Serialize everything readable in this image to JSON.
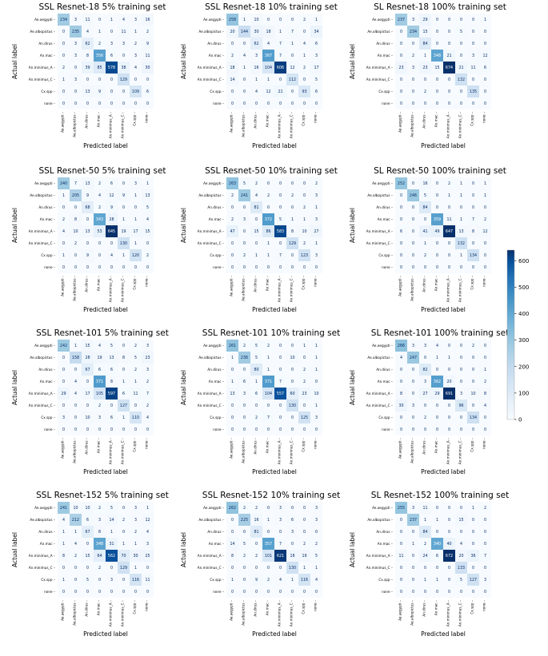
{
  "chart_data": {
    "type": "heatmap",
    "categories": [
      "Ae.aegypti",
      "Ae.albopictus",
      "An.dirus",
      "An.mac",
      "An.minimus_A",
      "An.minimus_C",
      "Cx.spp",
      "none"
    ],
    "xlabel": "Predicted label",
    "ylabel": "Actual label",
    "colorbar": {
      "min": 0,
      "max": 640,
      "ticks": [
        0,
        100,
        200,
        300,
        400,
        500,
        600
      ],
      "colors": [
        "#f7fbff",
        "#08306b"
      ]
    },
    "matrices": [
      {
        "title": "SSL Resnet-18 5% training set",
        "values": [
          [
            234,
            3,
            11,
            0,
            1,
            4,
            3,
            16
          ],
          [
            0,
            235,
            4,
            1,
            0,
            11,
            1,
            2
          ],
          [
            0,
            3,
            62,
            2,
            3,
            3,
            2,
            9
          ],
          [
            0,
            3,
            8,
            356,
            6,
            0,
            3,
            11
          ],
          [
            2,
            0,
            39,
            85,
            578,
            38,
            4,
            30
          ],
          [
            1,
            3,
            0,
            0,
            0,
            129,
            0,
            0
          ],
          [
            0,
            0,
            13,
            9,
            0,
            0,
            109,
            6
          ],
          [
            0,
            0,
            0,
            0,
            0,
            0,
            0,
            0
          ]
        ]
      },
      {
        "title": "SSL Resnet-18 10% training set",
        "values": [
          [
            258,
            1,
            10,
            0,
            0,
            0,
            2,
            1
          ],
          [
            20,
            144,
            30,
            18,
            1,
            7,
            0,
            34
          ],
          [
            0,
            0,
            62,
            4,
            7,
            1,
            4,
            6
          ],
          [
            2,
            4,
            3,
            367,
            7,
            0,
            1,
            3
          ],
          [
            18,
            1,
            16,
            104,
            606,
            12,
            2,
            17
          ],
          [
            14,
            0,
            1,
            1,
            0,
            112,
            0,
            5
          ],
          [
            0,
            0,
            4,
            12,
            21,
            0,
            93,
            6
          ],
          [
            0,
            0,
            0,
            0,
            0,
            0,
            0,
            0
          ]
        ]
      },
      {
        "title": "SL Resnet-18 100% training set",
        "values": [
          [
            237,
            3,
            29,
            0,
            0,
            0,
            0,
            1
          ],
          [
            0,
            234,
            15,
            0,
            0,
            5,
            0,
            0
          ],
          [
            0,
            0,
            84,
            0,
            0,
            0,
            0,
            0
          ],
          [
            0,
            2,
            1,
            348,
            21,
            0,
            3,
            12
          ],
          [
            23,
            3,
            23,
            15,
            674,
            21,
            11,
            6
          ],
          [
            0,
            0,
            0,
            0,
            0,
            132,
            0,
            0
          ],
          [
            0,
            0,
            2,
            0,
            0,
            0,
            135,
            0
          ],
          [
            0,
            0,
            0,
            0,
            0,
            0,
            0,
            0
          ]
        ]
      },
      {
        "title": "SSL Resnet-50 5% training set",
        "values": [
          [
            240,
            7,
            13,
            2,
            6,
            0,
            3,
            1
          ],
          [
            1,
            205,
            9,
            4,
            12,
            9,
            1,
            13
          ],
          [
            0,
            0,
            68,
            2,
            9,
            0,
            0,
            5
          ],
          [
            2,
            8,
            0,
            343,
            28,
            1,
            1,
            4
          ],
          [
            4,
            10,
            13,
            53,
            645,
            19,
            17,
            15
          ],
          [
            0,
            2,
            0,
            0,
            0,
            130,
            1,
            0
          ],
          [
            1,
            0,
            9,
            0,
            4,
            1,
            120,
            2
          ],
          [
            0,
            0,
            0,
            0,
            0,
            0,
            0,
            0
          ]
        ]
      },
      {
        "title": "SSL Resnet-50 10% training set",
        "values": [
          [
            263,
            5,
            2,
            0,
            0,
            0,
            0,
            2
          ],
          [
            2,
            241,
            4,
            2,
            0,
            2,
            0,
            3
          ],
          [
            0,
            0,
            81,
            0,
            0,
            0,
            2,
            1
          ],
          [
            2,
            3,
            0,
            372,
            5,
            1,
            1,
            3
          ],
          [
            47,
            0,
            15,
            86,
            583,
            8,
            10,
            27
          ],
          [
            0,
            0,
            0,
            1,
            0,
            129,
            2,
            1
          ],
          [
            0,
            2,
            1,
            1,
            7,
            0,
            123,
            3
          ],
          [
            0,
            0,
            0,
            0,
            0,
            0,
            0,
            0
          ]
        ]
      },
      {
        "title": "SL Resnet-50 100% training set",
        "values": [
          [
            252,
            0,
            16,
            0,
            2,
            1,
            0,
            1
          ],
          [
            0,
            246,
            5,
            0,
            1,
            1,
            0,
            1
          ],
          [
            0,
            0,
            84,
            0,
            0,
            0,
            0,
            0
          ],
          [
            0,
            0,
            0,
            359,
            11,
            1,
            7,
            2
          ],
          [
            6,
            0,
            41,
            49,
            647,
            13,
            8,
            12
          ],
          [
            0,
            0,
            1,
            0,
            0,
            132,
            0,
            0
          ],
          [
            0,
            0,
            2,
            0,
            0,
            1,
            134,
            0
          ],
          [
            0,
            0,
            0,
            0,
            0,
            0,
            0,
            0
          ]
        ]
      },
      {
        "title": "SSL Resnet-101 5% training set",
        "values": [
          [
            242,
            1,
            15,
            4,
            5,
            0,
            2,
            3
          ],
          [
            0,
            158,
            28,
            19,
            13,
            8,
            5,
            23
          ],
          [
            0,
            0,
            67,
            6,
            6,
            0,
            2,
            3
          ],
          [
            0,
            4,
            0,
            371,
            8,
            1,
            1,
            2
          ],
          [
            29,
            4,
            17,
            105,
            597,
            6,
            11,
            7
          ],
          [
            0,
            0,
            0,
            2,
            0,
            127,
            0,
            2
          ],
          [
            3,
            0,
            10,
            3,
            6,
            1,
            110,
            4
          ],
          [
            0,
            0,
            0,
            0,
            0,
            0,
            0,
            0
          ]
        ]
      },
      {
        "title": "SSL Resnet-101 10% training set",
        "values": [
          [
            261,
            2,
            5,
            2,
            0,
            0,
            1,
            1
          ],
          [
            1,
            236,
            5,
            1,
            0,
            10,
            0,
            1
          ],
          [
            0,
            0,
            80,
            1,
            0,
            0,
            2,
            1
          ],
          [
            1,
            6,
            1,
            371,
            7,
            0,
            2,
            0
          ],
          [
            13,
            3,
            6,
            104,
            557,
            60,
            23,
            10
          ],
          [
            0,
            0,
            0,
            0,
            0,
            130,
            0,
            1
          ],
          [
            0,
            0,
            2,
            7,
            0,
            0,
            125,
            3
          ],
          [
            0,
            0,
            0,
            0,
            0,
            0,
            0,
            0
          ]
        ]
      },
      {
        "title": "SL Resnet-101 100% training set",
        "values": [
          [
            266,
            3,
            3,
            4,
            0,
            0,
            2,
            0
          ],
          [
            4,
            247,
            0,
            1,
            1,
            0,
            0,
            0
          ],
          [
            0,
            0,
            82,
            0,
            0,
            0,
            0,
            1
          ],
          [
            0,
            0,
            3,
            362,
            20,
            0,
            0,
            2
          ],
          [
            8,
            0,
            27,
            29,
            691,
            3,
            10,
            8
          ],
          [
            30,
            3,
            0,
            0,
            0,
            96,
            0,
            4
          ],
          [
            0,
            0,
            2,
            0,
            0,
            0,
            134,
            0
          ],
          [
            0,
            0,
            0,
            0,
            0,
            0,
            0,
            0
          ]
        ]
      },
      {
        "title": "SSL Resnet-152 5% training set",
        "values": [
          [
            241,
            10,
            10,
            2,
            5,
            0,
            3,
            1
          ],
          [
            4,
            212,
            6,
            3,
            14,
            2,
            3,
            12
          ],
          [
            1,
            1,
            67,
            8,
            1,
            0,
            2,
            4
          ],
          [
            1,
            4,
            0,
            348,
            31,
            1,
            1,
            3
          ],
          [
            8,
            2,
            15,
            64,
            562,
            70,
            30,
            25
          ],
          [
            0,
            0,
            0,
            2,
            0,
            129,
            1,
            0
          ],
          [
            1,
            0,
            5,
            0,
            3,
            0,
            116,
            11
          ],
          [
            0,
            0,
            0,
            0,
            0,
            0,
            0,
            0
          ]
        ]
      },
      {
        "title": "SSL Resnet-152 10% training set",
        "values": [
          [
            262,
            2,
            2,
            0,
            3,
            0,
            0,
            3
          ],
          [
            0,
            225,
            16,
            1,
            3,
            6,
            0,
            3
          ],
          [
            0,
            0,
            81,
            0,
            0,
            3,
            0,
            0
          ],
          [
            14,
            5,
            0,
            357,
            7,
            0,
            2,
            2
          ],
          [
            8,
            2,
            2,
            101,
            621,
            18,
            19,
            5
          ],
          [
            0,
            0,
            0,
            0,
            0,
            130,
            1,
            1
          ],
          [
            1,
            0,
            9,
            2,
            4,
            1,
            116,
            4
          ],
          [
            0,
            0,
            0,
            0,
            0,
            0,
            0,
            0
          ]
        ]
      },
      {
        "title": "SL Resnet-152 100% training set",
        "values": [
          [
            255,
            3,
            11,
            0,
            0,
            0,
            1,
            2
          ],
          [
            0,
            237,
            1,
            1,
            0,
            15,
            0,
            0
          ],
          [
            0,
            0,
            84,
            0,
            0,
            0,
            0,
            0
          ],
          [
            0,
            1,
            2,
            340,
            40,
            4,
            0,
            0
          ],
          [
            11,
            0,
            24,
            6,
            672,
            20,
            36,
            7
          ],
          [
            0,
            0,
            0,
            0,
            0,
            133,
            0,
            0
          ],
          [
            0,
            0,
            1,
            1,
            0,
            5,
            127,
            3
          ],
          [
            0,
            0,
            0,
            0,
            0,
            0,
            0,
            0
          ]
        ]
      }
    ]
  }
}
